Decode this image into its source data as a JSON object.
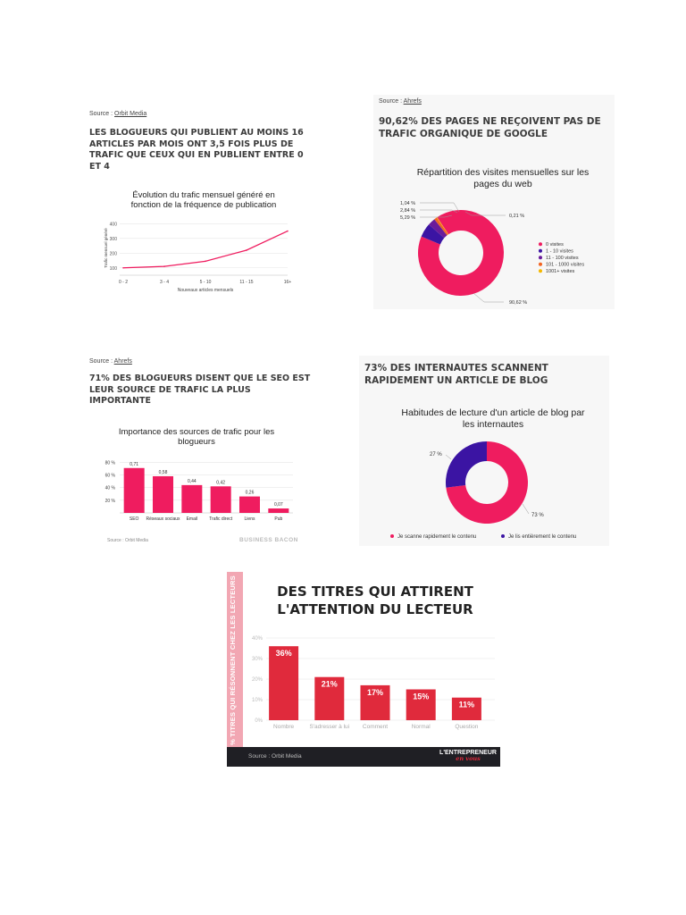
{
  "colors": {
    "pink": "#ef1c5f",
    "purple": "#3b14a3",
    "navy": "#2f1a8a",
    "orange": "#f26522",
    "yellow": "#f5b800",
    "red": "#e02a3c",
    "rose": "#f2a7b3",
    "dark": "#1f1f24",
    "panel_bg": "#f7f7f7"
  },
  "panel1": {
    "source_prefix": "Source :",
    "source_name": "Orbit Media",
    "headline_lines": [
      "LES BLOGUEURS QUI PUBLIENT AU MOINS 16",
      "ARTICLES PAR MOIS ONT 3,5 FOIS PLUS DE",
      "TRAFIC QUE CEUX QUI EN PUBLIENT ENTRE 0",
      "ET 4"
    ]
  },
  "panel2": {
    "source_prefix": "Source :",
    "source_name": "Ahrefs",
    "headline_lines": [
      "90,62% DES PAGES NE REÇOIVENT PAS DE",
      "TRAFIC ORGANIQUE DE GOOGLE"
    ]
  },
  "panel3": {
    "source_prefix": "Source :",
    "source_name": "Ahrefs",
    "headline_lines": [
      "71% DES BLOGUEURS DISENT QUE LE SEO EST",
      "LEUR SOURCE DE TRAFIC LA PLUS",
      "IMPORTANTE"
    ],
    "inner_source": "Source : Orbit Media",
    "logo": "BUSINESS BACON"
  },
  "panel4": {
    "headline_lines": [
      "73% DES INTERNAUTES SCANNENT",
      "RAPIDEMENT UN ARTICLE DE BLOG"
    ]
  },
  "panel5": {
    "headline_lines": [
      "DES TITRES QUI ATTIRENT",
      "L'ATTENTION DU LECTEUR"
    ],
    "side_label": "% TITRES QUI RÉSONNENT CHEZ LES LECTEURS",
    "footer_source": "Source : Orbit Media",
    "logo_line1": "L'ENTREPRENEUR",
    "logo_line2": "en vous"
  },
  "chart_data": [
    {
      "type": "line",
      "title_lines": [
        "Évolution du trafic mensuel généré en",
        "fonction de la fréquence de publication"
      ],
      "xlabel": "Nouveaux articles mensuels",
      "ylabel": "Trafic mensuel généré",
      "categories": [
        "0 - 2",
        "3 - 4",
        "5 - 10",
        "11 - 15",
        "16+"
      ],
      "values": [
        100,
        110,
        145,
        220,
        350
      ],
      "yticks": [
        100,
        200,
        300,
        400
      ],
      "ylim": [
        50,
        420
      ],
      "grid": true
    },
    {
      "type": "pie",
      "donut": true,
      "title_lines": [
        "Répartition des visites mensuelles sur les",
        "pages du web"
      ],
      "labels": [
        "0 visites",
        "1 - 10 visites",
        "11 - 100 visites",
        "101 - 1000 visites",
        "1001+ visites"
      ],
      "values": [
        90.62,
        5.29,
        2.84,
        1.04,
        0.21
      ],
      "value_labels": [
        "90,62 %",
        "5,29 %",
        "2,84 %",
        "1,04 %",
        "0,21 %"
      ],
      "legend": "right"
    },
    {
      "type": "bar",
      "title_lines": [
        "Importance des sources de trafic pour les",
        "blogueurs"
      ],
      "categories": [
        "SEO",
        "Réseaux sociaux",
        "Email",
        "Trafic direct",
        "Liens",
        "Pub"
      ],
      "values": [
        0.71,
        0.58,
        0.44,
        0.42,
        0.26,
        0.07
      ],
      "value_labels": [
        "0,71",
        "0,58",
        "0,44",
        "0,42",
        "0,26",
        "0,07"
      ],
      "yticks": [
        "20 %",
        "40 %",
        "60 %",
        "80 %"
      ],
      "ylim": [
        0,
        0.82
      ],
      "grid": true
    },
    {
      "type": "pie",
      "donut": true,
      "title_lines": [
        "Habitudes de lecture d'un article de blog par",
        "les internautes"
      ],
      "labels": [
        "Je scanne rapidement le contenu",
        "Je lis entièrement le contenu"
      ],
      "values": [
        73,
        27
      ],
      "value_labels": [
        "73 %",
        "27 %"
      ],
      "legend": "bottom"
    },
    {
      "type": "bar",
      "categories": [
        "Nombre",
        "S'adresser à lui",
        "Comment",
        "Normal",
        "Question"
      ],
      "values": [
        36,
        21,
        17,
        15,
        11
      ],
      "value_labels": [
        "36%",
        "21%",
        "17%",
        "15%",
        "11%"
      ],
      "yticks": [
        "0%",
        "10%",
        "20%",
        "30%",
        "40%"
      ],
      "ylim": [
        0,
        40
      ],
      "grid": true
    }
  ]
}
